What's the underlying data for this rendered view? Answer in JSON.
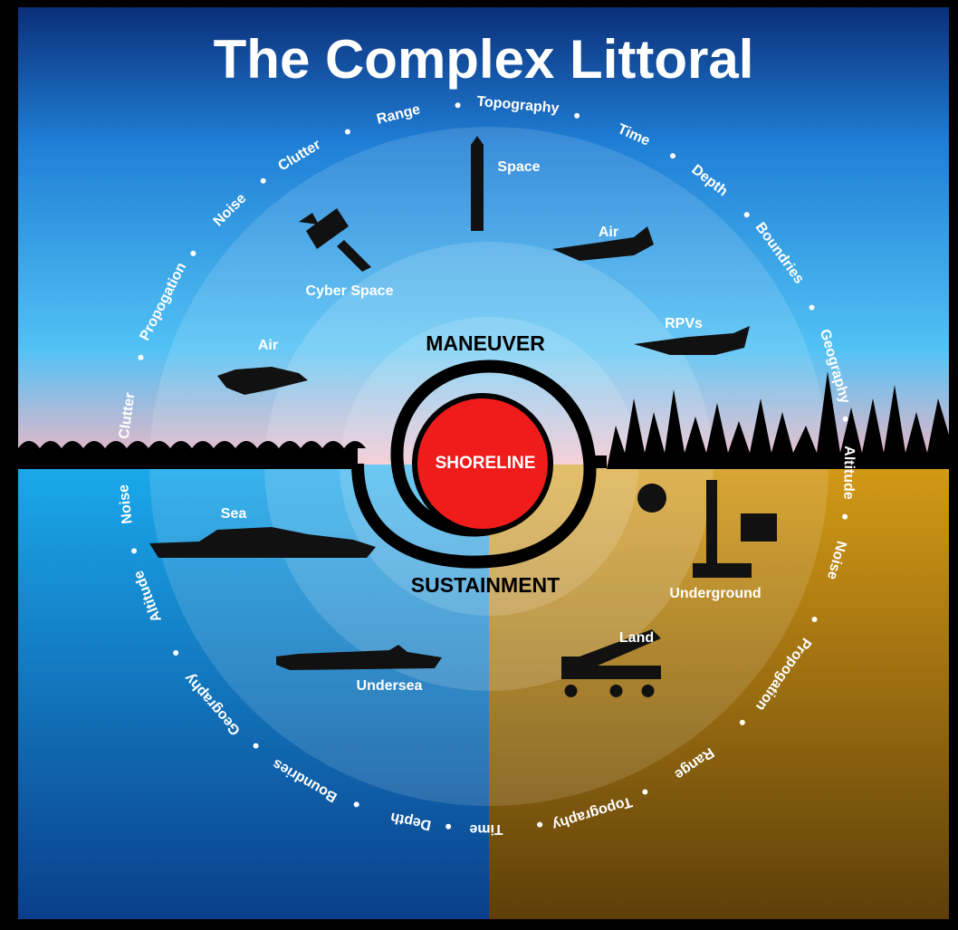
{
  "title": "The Complex Littoral",
  "center": {
    "label": "SHORELINE",
    "top": "MANEUVER",
    "bottom": "SUSTAINMENT"
  },
  "domains": [
    "Space",
    "Air",
    "RPVs",
    "Cyber Space",
    "Air",
    "Sea",
    "Undersea",
    "Land",
    "Underground"
  ],
  "ring": [
    "Clutter",
    "Propogation",
    "Noise",
    "Clutter",
    "Range",
    "Topography",
    "Time",
    "Depth",
    "Boundries",
    "Geography",
    "Altitude",
    "Noise",
    "Propogation",
    "Range",
    "Topography",
    "Time",
    "Depth",
    "Boundries",
    "Geography",
    "Altitude",
    "Noise"
  ]
}
